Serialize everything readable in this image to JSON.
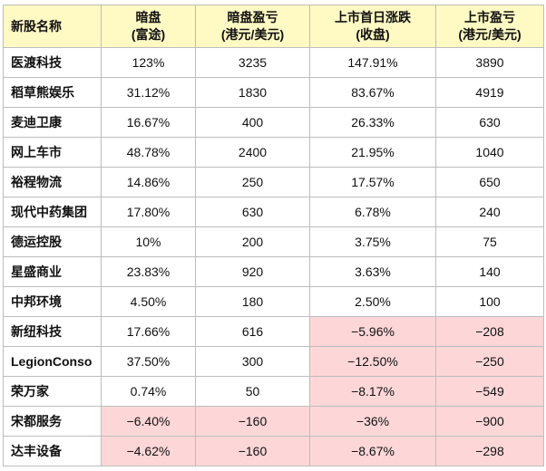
{
  "headers": [
    {
      "line1": "新股名称",
      "line2": ""
    },
    {
      "line1": "暗盘",
      "line2": "(富途)"
    },
    {
      "line1": "暗盘盈亏",
      "line2": "(港元/美元)"
    },
    {
      "line1": "上市首日涨跌",
      "line2": "(收盘)"
    },
    {
      "line1": "上市盈亏",
      "line2": "(港元/美元)"
    }
  ],
  "rows": [
    {
      "name": "医渡科技",
      "dark": "123%",
      "dark_pl": "3235",
      "day1": "147.91%",
      "day1_pl": "3890",
      "neg": [
        false,
        false,
        false,
        false
      ]
    },
    {
      "name": "稻草熊娱乐",
      "dark": "31.12%",
      "dark_pl": "1830",
      "day1": "83.67%",
      "day1_pl": "4919",
      "neg": [
        false,
        false,
        false,
        false
      ]
    },
    {
      "name": "麦迪卫康",
      "dark": "16.67%",
      "dark_pl": "400",
      "day1": "26.33%",
      "day1_pl": "630",
      "neg": [
        false,
        false,
        false,
        false
      ]
    },
    {
      "name": "网上车市",
      "dark": "48.78%",
      "dark_pl": "2400",
      "day1": "21.95%",
      "day1_pl": "1040",
      "neg": [
        false,
        false,
        false,
        false
      ]
    },
    {
      "name": "裕程物流",
      "dark": "14.86%",
      "dark_pl": "250",
      "day1": "17.57%",
      "day1_pl": "650",
      "neg": [
        false,
        false,
        false,
        false
      ]
    },
    {
      "name": "现代中药集团",
      "dark": "17.80%",
      "dark_pl": "630",
      "day1": "6.78%",
      "day1_pl": "240",
      "neg": [
        false,
        false,
        false,
        false
      ]
    },
    {
      "name": "德运控股",
      "dark": "10%",
      "dark_pl": "200",
      "day1": "3.75%",
      "day1_pl": "75",
      "neg": [
        false,
        false,
        false,
        false
      ]
    },
    {
      "name": "星盛商业",
      "dark": "23.83%",
      "dark_pl": "920",
      "day1": "3.63%",
      "day1_pl": "140",
      "neg": [
        false,
        false,
        false,
        false
      ]
    },
    {
      "name": "中邦环境",
      "dark": "4.50%",
      "dark_pl": "180",
      "day1": "2.50%",
      "day1_pl": "100",
      "neg": [
        false,
        false,
        false,
        false
      ]
    },
    {
      "name": "新纽科技",
      "dark": "17.66%",
      "dark_pl": "616",
      "day1": "−5.96%",
      "day1_pl": "−208",
      "neg": [
        false,
        false,
        true,
        true
      ]
    },
    {
      "name": "LegionConso",
      "dark": "37.50%",
      "dark_pl": "300",
      "day1": "−12.50%",
      "day1_pl": "−250",
      "neg": [
        false,
        false,
        true,
        true
      ]
    },
    {
      "name": "荣万家",
      "dark": "0.74%",
      "dark_pl": "50",
      "day1": "−8.17%",
      "day1_pl": "−549",
      "neg": [
        false,
        false,
        true,
        true
      ]
    },
    {
      "name": "宋都服务",
      "dark": "−6.40%",
      "dark_pl": "−160",
      "day1": "−36%",
      "day1_pl": "−900",
      "neg": [
        true,
        true,
        true,
        true
      ]
    },
    {
      "name": "达丰设备",
      "dark": "−4.62%",
      "dark_pl": "−160",
      "day1": "−8.67%",
      "day1_pl": "−298",
      "neg": [
        true,
        true,
        true,
        true
      ]
    }
  ],
  "colors": {
    "header_bg": "#fff9c4",
    "negative_bg": "#fdd7d8",
    "border": "#bdbdbd"
  }
}
